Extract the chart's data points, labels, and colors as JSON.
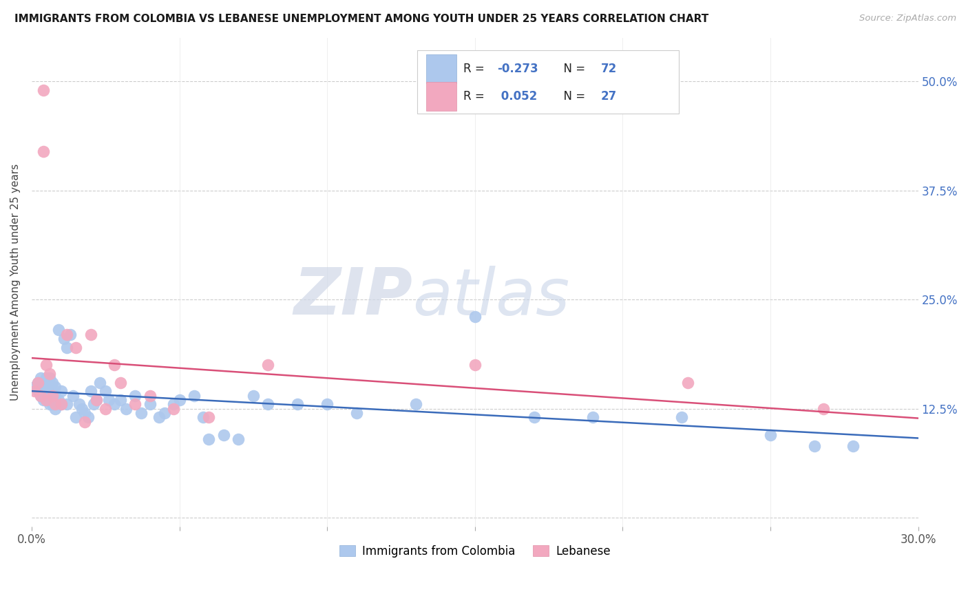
{
  "title": "IMMIGRANTS FROM COLOMBIA VS LEBANESE UNEMPLOYMENT AMONG YOUTH UNDER 25 YEARS CORRELATION CHART",
  "source": "Source: ZipAtlas.com",
  "ylabel": "Unemployment Among Youth under 25 years",
  "xlim": [
    0.0,
    0.3
  ],
  "ylim": [
    -0.01,
    0.55
  ],
  "yticks": [
    0.0,
    0.125,
    0.25,
    0.375,
    0.5
  ],
  "ytick_labels": [
    "",
    "12.5%",
    "25.0%",
    "37.5%",
    "50.0%"
  ],
  "xticks": [
    0.0,
    0.05,
    0.1,
    0.15,
    0.2,
    0.25,
    0.3
  ],
  "xtick_labels": [
    "0.0%",
    "",
    "",
    "",
    "",
    "",
    "30.0%"
  ],
  "r_colombia": -0.273,
  "n_colombia": 72,
  "r_lebanese": 0.052,
  "n_lebanese": 27,
  "colombia_color": "#adc8ed",
  "lebanese_color": "#f2a8bf",
  "trendline_colombia_color": "#3a6bba",
  "trendline_lebanese_color": "#d94f78",
  "watermark_zip": "ZIP",
  "watermark_atlas": "atlas",
  "colombia_x": [
    0.001,
    0.002,
    0.002,
    0.003,
    0.003,
    0.003,
    0.004,
    0.004,
    0.004,
    0.005,
    0.005,
    0.005,
    0.005,
    0.006,
    0.006,
    0.006,
    0.006,
    0.007,
    0.007,
    0.007,
    0.007,
    0.008,
    0.008,
    0.008,
    0.009,
    0.009,
    0.01,
    0.01,
    0.011,
    0.012,
    0.012,
    0.013,
    0.014,
    0.015,
    0.016,
    0.017,
    0.018,
    0.019,
    0.02,
    0.021,
    0.022,
    0.023,
    0.025,
    0.026,
    0.028,
    0.03,
    0.032,
    0.035,
    0.037,
    0.04,
    0.043,
    0.045,
    0.048,
    0.05,
    0.055,
    0.058,
    0.06,
    0.065,
    0.07,
    0.075,
    0.08,
    0.09,
    0.1,
    0.11,
    0.13,
    0.15,
    0.17,
    0.19,
    0.22,
    0.25,
    0.265,
    0.278
  ],
  "colombia_y": [
    0.15,
    0.155,
    0.145,
    0.14,
    0.15,
    0.16,
    0.135,
    0.145,
    0.155,
    0.14,
    0.135,
    0.15,
    0.16,
    0.13,
    0.14,
    0.15,
    0.16,
    0.135,
    0.145,
    0.155,
    0.13,
    0.14,
    0.15,
    0.125,
    0.215,
    0.135,
    0.13,
    0.145,
    0.205,
    0.195,
    0.13,
    0.21,
    0.14,
    0.115,
    0.13,
    0.125,
    0.12,
    0.115,
    0.145,
    0.13,
    0.135,
    0.155,
    0.145,
    0.135,
    0.13,
    0.135,
    0.125,
    0.14,
    0.12,
    0.13,
    0.115,
    0.12,
    0.13,
    0.135,
    0.14,
    0.115,
    0.09,
    0.095,
    0.09,
    0.14,
    0.13,
    0.13,
    0.13,
    0.12,
    0.13,
    0.23,
    0.115,
    0.115,
    0.115,
    0.095,
    0.082,
    0.082
  ],
  "lebanese_x": [
    0.001,
    0.002,
    0.003,
    0.004,
    0.004,
    0.005,
    0.005,
    0.006,
    0.007,
    0.008,
    0.01,
    0.012,
    0.015,
    0.018,
    0.02,
    0.022,
    0.025,
    0.028,
    0.03,
    0.035,
    0.04,
    0.048,
    0.06,
    0.08,
    0.15,
    0.222,
    0.268
  ],
  "lebanese_y": [
    0.145,
    0.155,
    0.14,
    0.49,
    0.42,
    0.135,
    0.175,
    0.165,
    0.14,
    0.13,
    0.13,
    0.21,
    0.195,
    0.11,
    0.21,
    0.135,
    0.125,
    0.175,
    0.155,
    0.13,
    0.14,
    0.125,
    0.115,
    0.175,
    0.175,
    0.155,
    0.125
  ]
}
